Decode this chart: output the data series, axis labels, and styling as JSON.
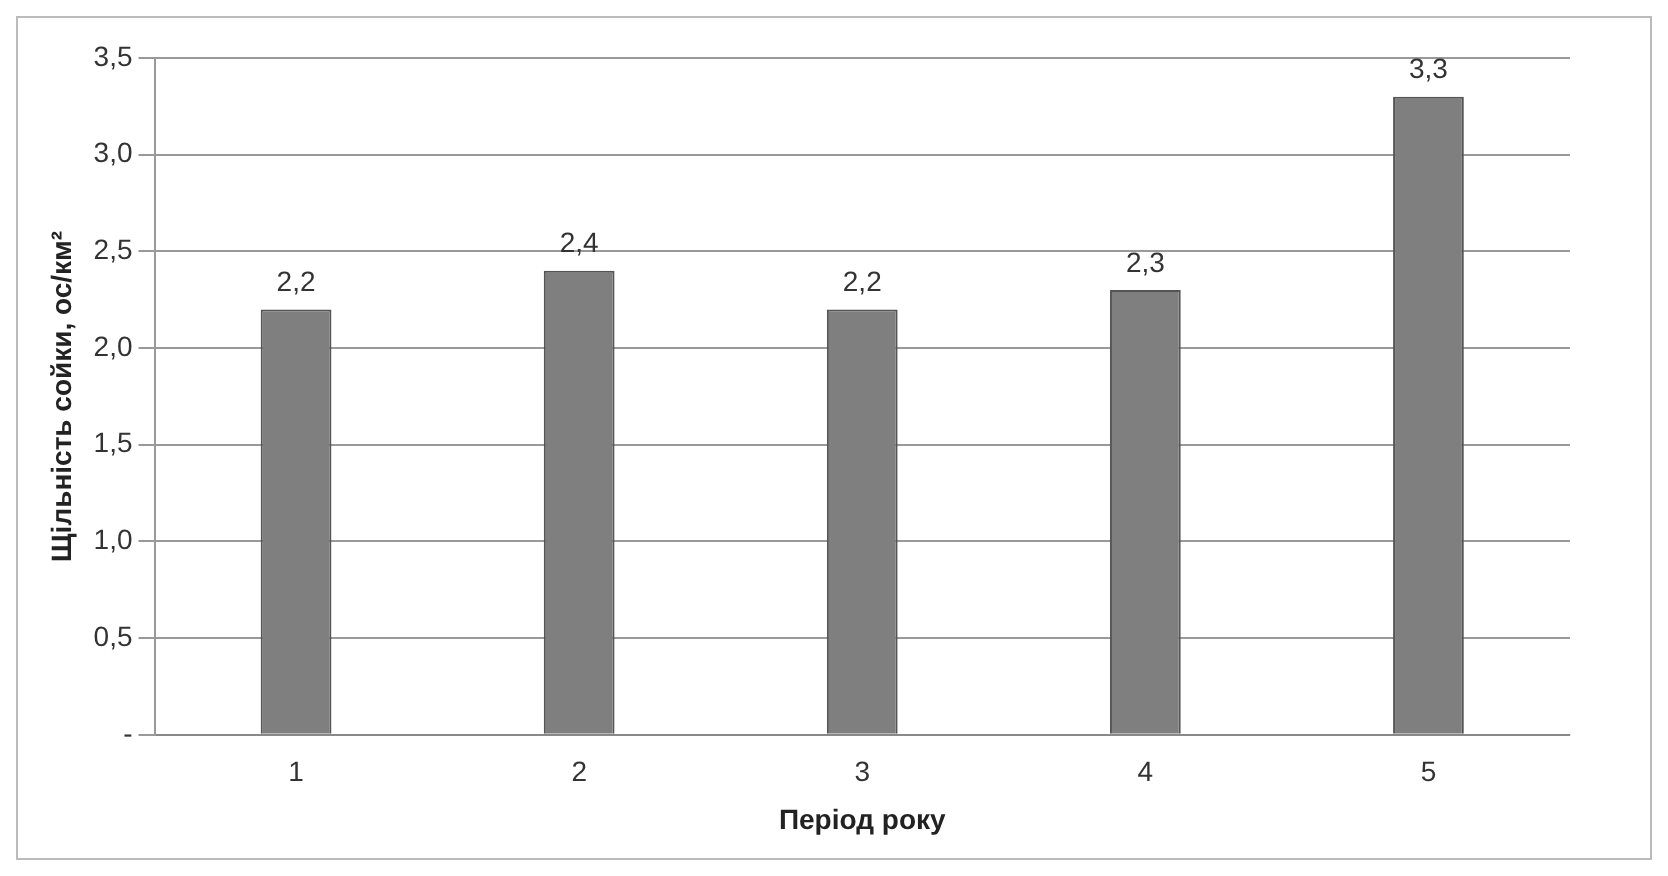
{
  "chart_data": {
    "type": "bar",
    "xlabel": "Період року",
    "ylabel": "Щільність сойки, ос/км²",
    "categories": [
      "1",
      "2",
      "3",
      "4",
      "5"
    ],
    "values": [
      2.2,
      2.4,
      2.2,
      2.3,
      3.3
    ],
    "value_labels": [
      "2,2",
      "2,4",
      "2,2",
      "2,3",
      "3,3"
    ],
    "color": "#7f7f7f",
    "ylim": [
      0,
      3.5
    ],
    "yticks": [
      {
        "value": 0,
        "label": "-"
      },
      {
        "value": 0.5,
        "label": "0,5"
      },
      {
        "value": 1,
        "label": "1,0"
      },
      {
        "value": 1.5,
        "label": "1,5"
      },
      {
        "value": 2,
        "label": "2,0"
      },
      {
        "value": 2.5,
        "label": "2,5"
      },
      {
        "value": 3,
        "label": "3,0"
      },
      {
        "value": 3.5,
        "label": "3,5"
      }
    ],
    "grid": "y",
    "legend": false
  }
}
